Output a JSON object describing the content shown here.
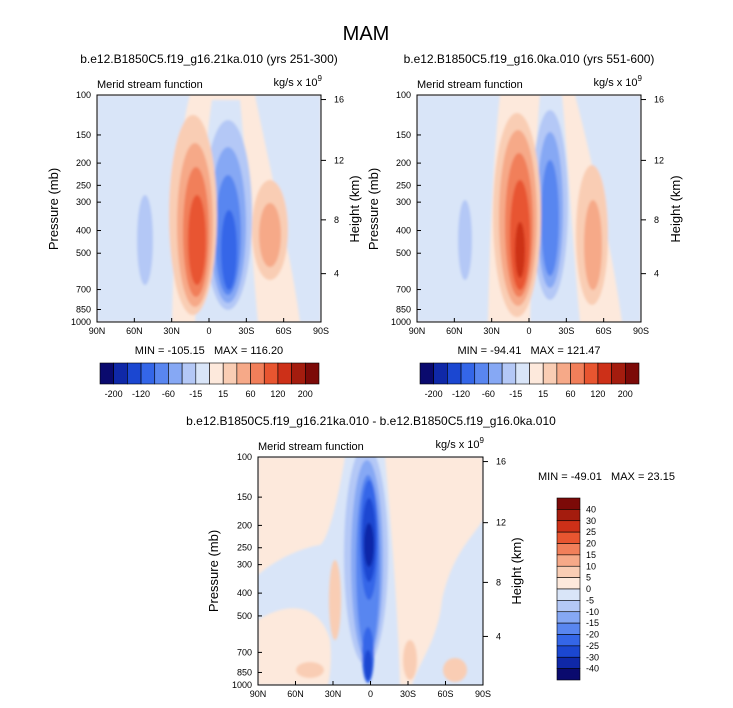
{
  "figure": {
    "title": "MAM"
  },
  "colors": {
    "palette": [
      "#0a0a6e",
      "#0f28a8",
      "#1b47d1",
      "#3466e8",
      "#5986f0",
      "#86a8f4",
      "#b4c8f6",
      "#d9e5f8",
      "#fde9dc",
      "#f9cdb4",
      "#f6a988",
      "#f17f5a",
      "#e85530",
      "#cd3018",
      "#a41c0e",
      "#7c0a08"
    ],
    "diff_palette": [
      "#0a0a6e",
      "#0f28a8",
      "#1b47d1",
      "#3466e8",
      "#5986f0",
      "#86a8f4",
      "#b4c8f6",
      "#d9e5f8",
      "#fde9dc",
      "#f9cdb4",
      "#f6a988",
      "#f17f5a",
      "#e85530",
      "#cd3018",
      "#a41c0e"
    ]
  },
  "chart_data": [
    {
      "type": "heatmap",
      "panel": "top-left",
      "title": "b.e12.B1850C5.f19_g16.21ka.010 (yrs 251-300)",
      "left_label": "Merid stream function",
      "units_base": "kg/s x 10",
      "units_exp": "9",
      "ylabel": "Pressure (mb)",
      "y2label": "Height (km)",
      "xticks": [
        "90N",
        "60N",
        "30N",
        "0",
        "30S",
        "60S",
        "90S"
      ],
      "yticks": [
        "100",
        "150",
        "200",
        "250",
        "300",
        "400",
        "500",
        "700",
        "850",
        "1000"
      ],
      "y2ticks": [
        "16",
        "12",
        "8",
        "4"
      ],
      "stats": "MIN = -105.15   MAX = 116.20",
      "min": -105.15,
      "max": 116.2,
      "colorbar_labels": [
        "-200",
        "-120",
        "-60",
        "-15",
        "15",
        "60",
        "120",
        "200"
      ]
    },
    {
      "type": "heatmap",
      "panel": "top-right",
      "title": "b.e12.B1850C5.f19_g16.0ka.010 (yrs 551-600)",
      "left_label": "Merid stream function",
      "units_base": "kg/s x 10",
      "units_exp": "9",
      "ylabel": "Pressure (mb)",
      "y2label": "Height (km)",
      "xticks": [
        "90N",
        "60N",
        "30N",
        "0",
        "30S",
        "60S",
        "90S"
      ],
      "yticks": [
        "100",
        "150",
        "200",
        "250",
        "300",
        "400",
        "500",
        "700",
        "850",
        "1000"
      ],
      "y2ticks": [
        "16",
        "12",
        "8",
        "4"
      ],
      "stats": "MIN = -94.41   MAX = 121.47",
      "min": -94.41,
      "max": 121.47,
      "colorbar_labels": [
        "-200",
        "-120",
        "-60",
        "-15",
        "15",
        "60",
        "120",
        "200"
      ]
    },
    {
      "type": "heatmap",
      "panel": "bottom",
      "title": "b.e12.B1850C5.f19_g16.21ka.010 - b.e12.B1850C5.f19_g16.0ka.010",
      "left_label": "Merid stream function",
      "units_base": "kg/s x 10",
      "units_exp": "9",
      "ylabel": "Pressure (mb)",
      "y2label": "Height (km)",
      "xticks": [
        "90N",
        "60N",
        "30N",
        "0",
        "30S",
        "60S",
        "90S"
      ],
      "yticks": [
        "100",
        "150",
        "200",
        "250",
        "300",
        "400",
        "500",
        "700",
        "850",
        "1000"
      ],
      "y2ticks": [
        "16",
        "12",
        "8",
        "4"
      ],
      "stats": "MIN = -49.01   MAX = 23.15",
      "min": -49.01,
      "max": 23.15,
      "colorbar_labels": [
        "40",
        "30",
        "25",
        "20",
        "15",
        "10",
        "5",
        "0",
        "-5",
        "-10",
        "-15",
        "-20",
        "-25",
        "-30",
        "-40"
      ]
    }
  ]
}
